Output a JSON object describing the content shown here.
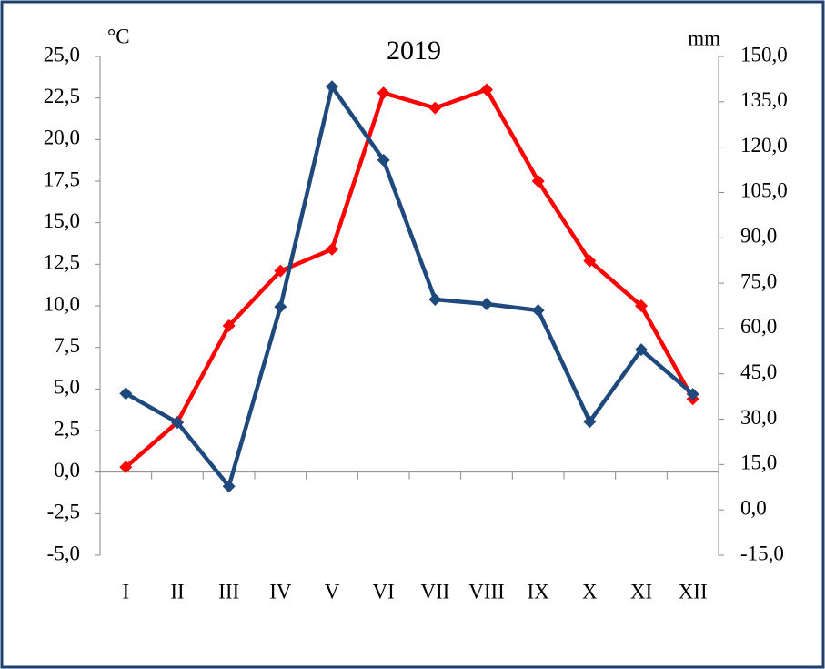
{
  "chart_data": {
    "type": "line",
    "title": "2019",
    "y_label": "°C",
    "y2_label": "mm",
    "categories": [
      "I",
      "II",
      "III",
      "IV",
      "V",
      "VI",
      "VII",
      "VIII",
      "IX",
      "X",
      "XI",
      "XII"
    ],
    "series": [
      {
        "color": "#ff0000",
        "values": [
          0.3,
          3.0,
          8.8,
          12.1,
          13.4,
          22.8,
          21.9,
          23.0,
          17.5,
          12.7,
          10.0,
          4.4
        ]
      },
      {
        "color": "#1f497d",
        "axis": "y2",
        "values": [
          38.5,
          28.9,
          7.8,
          67.2,
          140.0,
          115.7,
          69.6,
          68.1,
          66.0,
          29.2,
          53.0,
          38.3
        ]
      }
    ],
    "ylim": [
      -5,
      25
    ],
    "yticks": [
      {
        "value": -5,
        "label": "-5,0"
      },
      {
        "value": -2.5,
        "label": "-2,5"
      },
      {
        "value": 0,
        "label": "0,0"
      },
      {
        "value": 2.5,
        "label": "2,5"
      },
      {
        "value": 5,
        "label": "5,0"
      },
      {
        "value": 7.5,
        "label": "7,5"
      },
      {
        "value": 10,
        "label": "10,0"
      },
      {
        "value": 12.5,
        "label": "12,5"
      },
      {
        "value": 15,
        "label": "15,0"
      },
      {
        "value": 17.5,
        "label": "17,5"
      },
      {
        "value": 20,
        "label": "20,0"
      },
      {
        "value": 22.5,
        "label": "22,5"
      },
      {
        "value": 25,
        "label": "25,0"
      }
    ],
    "y2lim": [
      -15,
      150
    ],
    "y2ticks": [
      {
        "value": -15,
        "label": "-15,0"
      },
      {
        "value": 0,
        "label": "0,0"
      },
      {
        "value": 15,
        "label": "15,0"
      },
      {
        "value": 30,
        "label": "30,0"
      },
      {
        "value": 45,
        "label": "45,0"
      },
      {
        "value": 60,
        "label": "60,0"
      },
      {
        "value": 75,
        "label": "75,0"
      },
      {
        "value": 90,
        "label": "90,0"
      },
      {
        "value": 105,
        "label": "105,0"
      },
      {
        "value": 120,
        "label": "120,0"
      },
      {
        "value": 135,
        "label": "135,0"
      },
      {
        "value": 150,
        "label": "150,0"
      }
    ],
    "grid": false
  }
}
